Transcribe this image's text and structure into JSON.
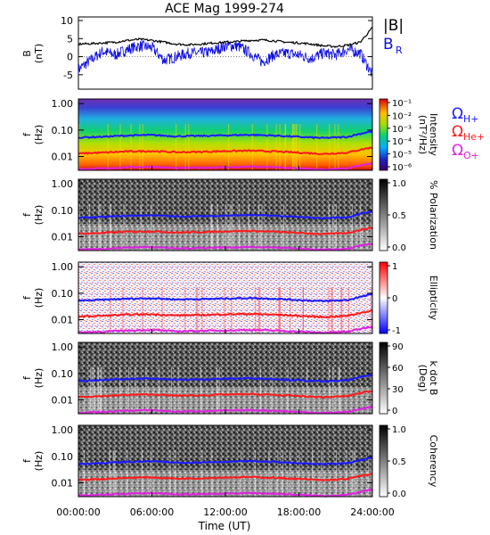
{
  "title": "ACE Mag 1999-274",
  "xlabel": "Time (UT)",
  "x_ticks": [
    "00:00:00",
    "06:00:00",
    "12:00:00",
    "18:00:00",
    "24:00:00"
  ],
  "freq_ticks": [
    "1.00",
    "0.10",
    "0.01"
  ],
  "freq_ylabel_f": "f",
  "freq_ylabel_unit": "(Hz)",
  "colors": {
    "b_magnitude": "#000000",
    "b_radial": "#1010e0",
    "omega_h": "#1a1aff",
    "omega_he": "#ff1a1a",
    "omega_o": "#e020e0"
  },
  "legend_gyro": {
    "h": {
      "symbol": "Ω",
      "sub": "H+"
    },
    "he": {
      "symbol": "Ω",
      "sub": "He+"
    },
    "o": {
      "symbol": "Ω",
      "sub": "O+"
    }
  },
  "chart_data": [
    {
      "type": "line",
      "panel": "B",
      "ylabel": "B",
      "yunit": "(nT)",
      "ylim": [
        -9,
        11
      ],
      "y_ticks": [
        "10",
        "5",
        "0",
        "-5"
      ],
      "x_hours": [
        0,
        1,
        2,
        3,
        4,
        5,
        6,
        7,
        8,
        9,
        10,
        11,
        12,
        13,
        14,
        15,
        16,
        17,
        18,
        19,
        20,
        21,
        22,
        23,
        24
      ],
      "series": [
        {
          "name": "|B|",
          "values": [
            3.5,
            3.6,
            3.8,
            4.0,
            4.5,
            4.8,
            4.5,
            4.0,
            3.5,
            3.3,
            3.5,
            3.8,
            4.0,
            4.2,
            4.5,
            4.6,
            4.4,
            4.0,
            3.8,
            3.5,
            3.0,
            2.8,
            3.2,
            4.0,
            8.0
          ]
        },
        {
          "name": "B",
          "sub": "R",
          "values": [
            -3.5,
            -1.0,
            1.5,
            0.5,
            2.0,
            3.0,
            2.5,
            -1.0,
            0.0,
            1.0,
            1.0,
            1.5,
            3.0,
            3.0,
            1.0,
            -1.5,
            0.5,
            1.0,
            0.5,
            -0.5,
            1.0,
            0.5,
            2.0,
            1.0,
            -5.0
          ]
        }
      ]
    },
    {
      "type": "heatmap",
      "panel": "intensity",
      "colorbar_label": "Intensity",
      "colorbar_unit": "(nT²/Hz)",
      "colorbar_ticks": [
        "10⁻¹",
        "10⁻²",
        "10⁻³",
        "10⁻⁴",
        "10⁻⁵",
        "10⁻⁶"
      ],
      "colormap": "rainbow",
      "ylim_hz": [
        0.003,
        1.5
      ]
    },
    {
      "type": "heatmap",
      "panel": "polarization",
      "colorbar_label": "% Polarization",
      "colorbar_ticks": [
        "1.0",
        "0.5",
        "0.0"
      ],
      "colormap": "gray",
      "ylim_hz": [
        0.003,
        1.5
      ]
    },
    {
      "type": "heatmap",
      "panel": "ellipticity",
      "colorbar_label": "Ellipticity",
      "colorbar_ticks": [
        "1",
        "0",
        "-1"
      ],
      "colormap": "bwr",
      "ylim_hz": [
        0.003,
        1.5
      ]
    },
    {
      "type": "heatmap",
      "panel": "kdotb",
      "colorbar_label": "k dot B",
      "colorbar_unit": "(Deg)",
      "colorbar_ticks": [
        "90",
        "60",
        "30",
        "0"
      ],
      "colormap": "gray",
      "ylim_hz": [
        0.003,
        1.5
      ]
    },
    {
      "type": "heatmap",
      "panel": "coherency",
      "colorbar_label": "Coherency",
      "colorbar_ticks": [
        "1.0",
        "0.5",
        "0.0"
      ],
      "colormap": "gray",
      "ylim_hz": [
        0.003,
        1.5
      ]
    },
    {
      "type": "line",
      "panel": "gyrofrequencies",
      "x_hours": [
        0,
        2,
        4,
        6,
        8,
        10,
        12,
        14,
        16,
        18,
        20,
        22,
        24
      ],
      "series": [
        {
          "name": "ΩH+",
          "values_hz": [
            0.052,
            0.056,
            0.062,
            0.065,
            0.058,
            0.06,
            0.063,
            0.066,
            0.062,
            0.055,
            0.05,
            0.055,
            0.09
          ]
        },
        {
          "name": "ΩHe+",
          "values_hz": [
            0.013,
            0.014,
            0.0155,
            0.016,
            0.0145,
            0.015,
            0.016,
            0.0165,
            0.0155,
            0.014,
            0.0125,
            0.014,
            0.022
          ]
        },
        {
          "name": "ΩO+",
          "values_hz": [
            0.0033,
            0.0035,
            0.0039,
            0.0041,
            0.0036,
            0.0038,
            0.0039,
            0.0041,
            0.0039,
            0.0035,
            0.0032,
            0.0035,
            0.0055
          ]
        }
      ]
    }
  ]
}
